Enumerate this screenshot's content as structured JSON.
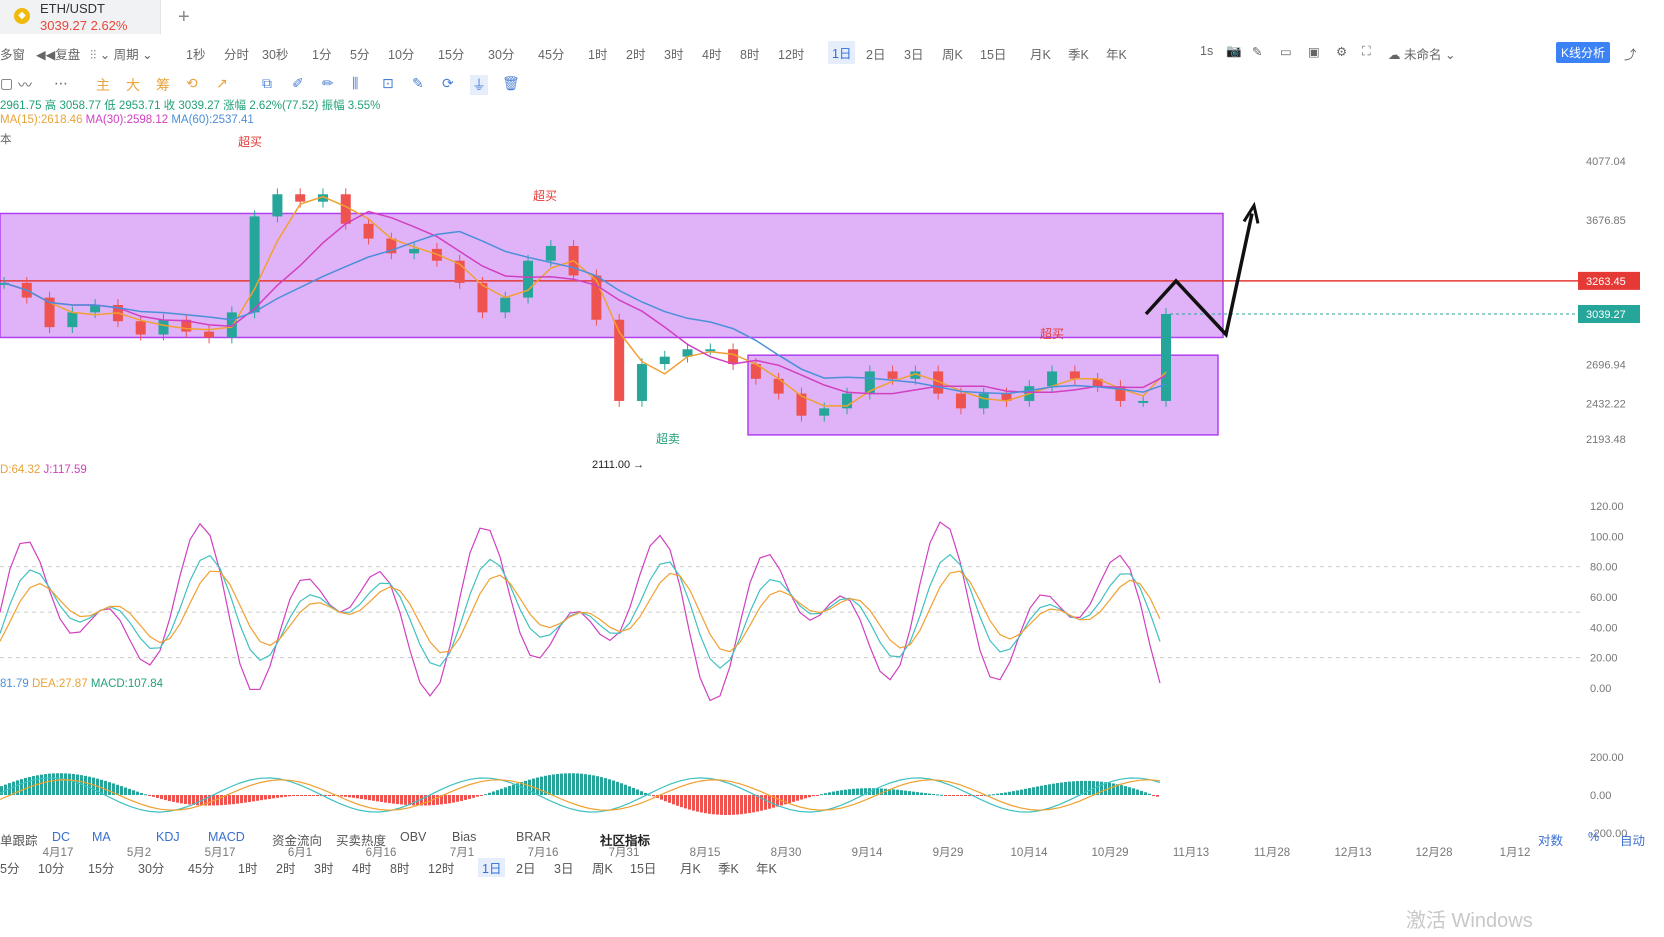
{
  "tab": {
    "pair": "ETH/USDT",
    "price": "3039.27 2.62%"
  },
  "periods": [
    "1秒",
    "分时",
    "30秒",
    "1分",
    "5分",
    "10分",
    "15分",
    "30分",
    "45分",
    "1时",
    "2时",
    "3时",
    "4时",
    "8时",
    "12时",
    "1日",
    "2日",
    "3日",
    "周K",
    "15日",
    "月K",
    "季K",
    "年K"
  ],
  "periods_left": [
    "多窗",
    "复盘",
    "周期"
  ],
  "selected_period": "1日",
  "right_tools": {
    "interval": "1s",
    "name": "未命名",
    "kline_btn": "K线分析"
  },
  "toolbar2": [
    "主",
    "大",
    "筹"
  ],
  "ohlc_line": "2961.75 高 3058.77 低 2953.71 收 3039.27 涨幅 2.62%(77.52) 振幅 3.55%",
  "ma_line": {
    "ma15": "MA(15):2618.46",
    "ma30": "MA(30):2598.12",
    "ma60": "MA(60):2537.41"
  },
  "left_fragment": "本",
  "kdj_line": {
    "d": "D:64.32",
    "j": "J:117.59"
  },
  "macd_line": {
    "dif": "81.79",
    "dea": "DEA:27.87",
    "macd": "MACD:107.84"
  },
  "annotations": {
    "overbought": "超买",
    "oversold": "超卖",
    "low_label": "2111.00"
  },
  "price_tags": {
    "red": "3263.45",
    "green": "3039.27"
  },
  "bottom_indicators": [
    "单跟踪",
    "DC",
    "MA",
    "KDJ",
    "MACD",
    "资金流向",
    "买卖热度",
    "OBV",
    "Bias",
    "BRAR",
    "社区指标"
  ],
  "bottom_right": [
    "对数",
    "%",
    "自动"
  ],
  "bottom_periods": [
    "5分",
    "10分",
    "15分",
    "30分",
    "45分",
    "1时",
    "2时",
    "3时",
    "4时",
    "8时",
    "12时",
    "1日",
    "2日",
    "3日",
    "周K",
    "15日",
    "月K",
    "季K",
    "年K"
  ],
  "watermark": "激活 Windows",
  "colors": {
    "up": "#26a69a",
    "down": "#ef5350",
    "ma15": "#f0a030",
    "ma30": "#d040c0",
    "ma60": "#4a90d9",
    "zone": "#b040f0"
  },
  "chart_data": {
    "type": "candlestick",
    "x_tick_labels": [
      "4月17",
      "5月2",
      "5月17",
      "6月1",
      "6月16",
      "7月1",
      "7月16",
      "7月31",
      "8月15",
      "8月30",
      "9月14",
      "9月29",
      "10月14",
      "10月29",
      "11月13",
      "11月28",
      "12月13",
      "12月28",
      "1月12"
    ],
    "y_tick_labels": [
      "4077.04",
      "3676.85",
      "2696.94",
      "2432.22",
      "2193.48"
    ],
    "ylim": [
      2050,
      4150
    ],
    "kdj_ticks": [
      "120.00",
      "100.00",
      "80.00",
      "60.00",
      "40.00",
      "20.00",
      "0.00"
    ],
    "macd_ticks": [
      "200.00",
      "0.00",
      "-200.00"
    ],
    "close_series": [
      3250,
      3150,
      2950,
      3050,
      3100,
      2990,
      2900,
      3000,
      2920,
      2880,
      3050,
      3700,
      3850,
      3800,
      3850,
      3650,
      3550,
      3450,
      3480,
      3400,
      3250,
      3050,
      3150,
      3400,
      3500,
      3300,
      3000,
      2450,
      2700,
      2750,
      2800,
      2800,
      2700,
      2600,
      2500,
      2350,
      2400,
      2500,
      2650,
      2600,
      2650,
      2500,
      2400,
      2500,
      2450,
      2550,
      2650,
      2600,
      2550,
      2450,
      2450,
      3039
    ],
    "overbought_zones": [
      {
        "low": 2880,
        "high": 3720
      },
      {
        "low": 2220,
        "high": 2760
      }
    ],
    "projection": [
      3039,
      3263,
      2900,
      3720
    ],
    "key_level": 3263.45
  }
}
